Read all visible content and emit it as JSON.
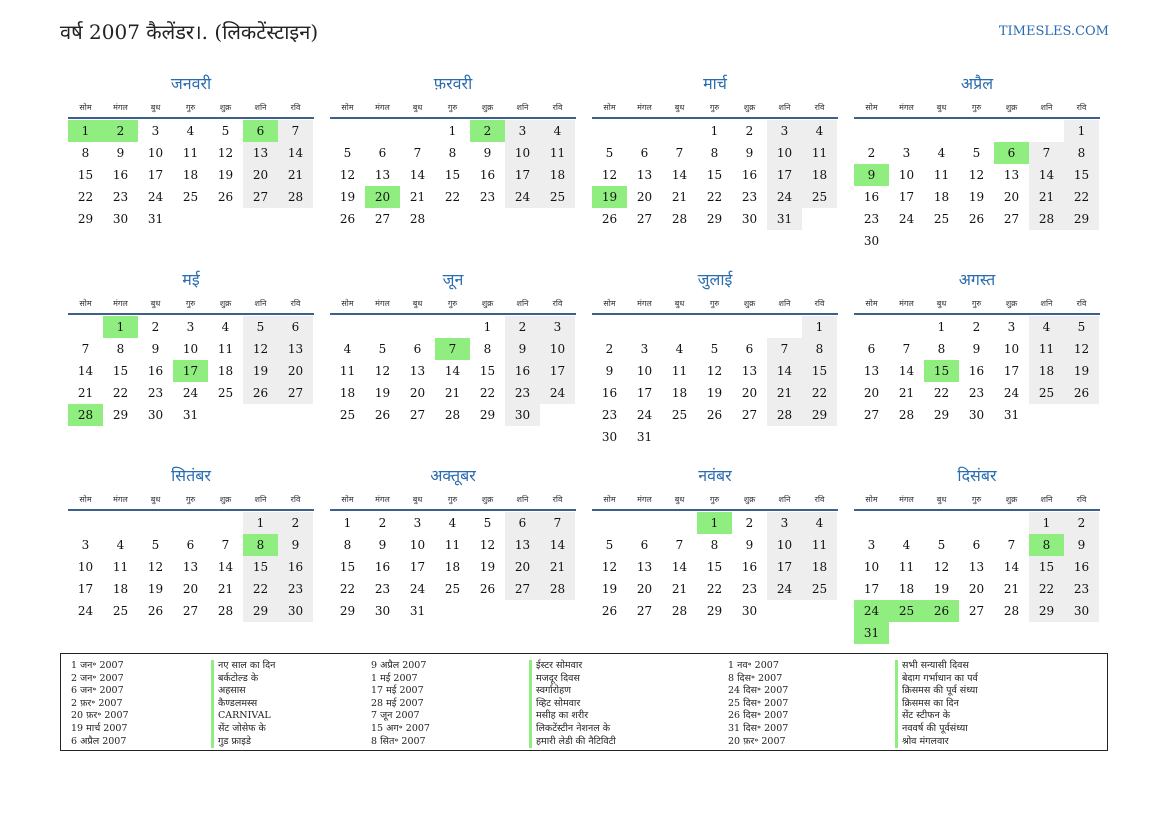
{
  "header": {
    "title": "वर्ष 2007 कैलेंडर।. (लिकटेंस्टाइन)",
    "site": "TIMESLES.COM"
  },
  "weekdays": [
    "सोम",
    "मंगल",
    "बुध",
    "गुरु",
    "शुक्र",
    "शनि",
    "रवि"
  ],
  "colors": {
    "accent": "#2a6cb0",
    "holiday": "#90ee80",
    "weekend": "#eeeeee",
    "rule": "#3d5f8c"
  },
  "months": [
    {
      "name": "जनवरी",
      "offset": 0,
      "days": 31,
      "holidays": [
        1,
        2,
        6
      ]
    },
    {
      "name": "फ़रवरी",
      "offset": 3,
      "days": 28,
      "holidays": [
        2,
        20
      ]
    },
    {
      "name": "मार्च",
      "offset": 3,
      "days": 31,
      "holidays": [
        19
      ]
    },
    {
      "name": "अप्रैल",
      "offset": 6,
      "days": 30,
      "holidays": [
        6,
        9
      ]
    },
    {
      "name": "मई",
      "offset": 1,
      "days": 31,
      "holidays": [
        1,
        17,
        28
      ]
    },
    {
      "name": "जून",
      "offset": 4,
      "days": 30,
      "holidays": [
        7
      ]
    },
    {
      "name": "जुलाई",
      "offset": 6,
      "days": 31,
      "holidays": []
    },
    {
      "name": "अगस्त",
      "offset": 2,
      "days": 31,
      "holidays": [
        15
      ]
    },
    {
      "name": "सितंबर",
      "offset": 5,
      "days": 30,
      "holidays": [
        8
      ]
    },
    {
      "name": "अक्तूबर",
      "offset": 0,
      "days": 31,
      "holidays": []
    },
    {
      "name": "नवंबर",
      "offset": 3,
      "days": 30,
      "holidays": [
        1
      ]
    },
    {
      "name": "दिसंबर",
      "offset": 5,
      "days": 31,
      "holidays": [
        8,
        24,
        25,
        26,
        31
      ]
    }
  ],
  "legend": {
    "columns": [
      {
        "dates": [
          "1 जन॰ 2007",
          "2 जन॰ 2007",
          "6 जन॰ 2007",
          "2 फ़र॰ 2007",
          "20 फ़र॰ 2007",
          "19 मार्च 2007",
          "6 अप्रैल 2007"
        ],
        "names": [
          "नए साल का दिन",
          "बर्कटोल्ड के",
          "अहसास",
          "कैण्डलमस्स",
          "CARNIVAL",
          "सेंट जोसेफ के",
          "गुड फ्राइडे"
        ]
      },
      {
        "dates": [
          "9 अप्रैल 2007",
          "1 मई 2007",
          "17 मई 2007",
          "28 मई 2007",
          "7 जून 2007",
          "15 अग॰ 2007",
          "8 सित॰ 2007"
        ],
        "names": [
          "ईस्टर सोमवार",
          "मजदूर दिवस",
          "स्वर्गारोहण",
          "व्हिट सोमवार",
          "मसीह का शरीर",
          "लिकटेंस्टीन नेशनल के",
          "हमारी लेडी की नैटिविटी"
        ]
      },
      {
        "dates": [
          "1 नव॰ 2007",
          "8 दिस॰ 2007",
          "24 दिस॰ 2007",
          "25 दिस॰ 2007",
          "26 दिस॰ 2007",
          "31 दिस॰ 2007",
          "20 फ़र॰ 2007"
        ],
        "names": [
          "सभी सन्यासी दिवस",
          "बेदाग गर्भाधान का पर्व",
          "क्रिसमस की पूर्व संध्या",
          "क्रिसमस का दिन",
          "सेंट स्टीफन के",
          "नववर्ष की पूर्वसंध्या",
          "श्रोव मंगलवार"
        ]
      }
    ]
  }
}
